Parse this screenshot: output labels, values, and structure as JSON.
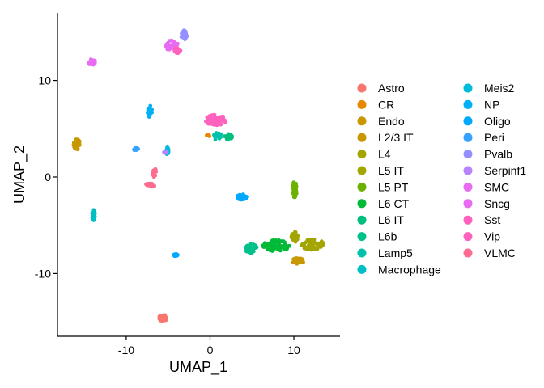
{
  "chart_data": {
    "type": "scatter",
    "title": "",
    "xlabel": "UMAP_1",
    "ylabel": "UMAP_2",
    "xlim": [
      -18.2,
      15.5
    ],
    "ylim": [
      -16.5,
      17
    ],
    "xticks": [
      -10,
      0,
      10
    ],
    "yticks": [
      -10,
      0,
      10
    ],
    "xtick_labels": [
      "-10",
      "0",
      "10"
    ],
    "ytick_labels": [
      "-10",
      "0",
      "10"
    ],
    "grid": false,
    "legend": "right",
    "series": [
      {
        "name": "Astro",
        "color": "#F8766D",
        "clusters": [
          [
            -5.6,
            -14.6,
            0.5,
            0.35,
            40
          ]
        ]
      },
      {
        "name": "CR",
        "color": "#E58700",
        "clusters": [
          [
            -0.2,
            4.3,
            0.2,
            0.15,
            3
          ]
        ]
      },
      {
        "name": "Endo",
        "color": "#C99800",
        "clusters": [
          [
            -15.9,
            3.4,
            0.4,
            0.55,
            40
          ]
        ]
      },
      {
        "name": "L2/3 IT",
        "color": "#C99800",
        "clusters": [
          [
            10.5,
            -8.7,
            0.7,
            0.3,
            30
          ]
        ]
      },
      {
        "name": "L4",
        "color": "#A3A500",
        "clusters": [
          [
            12.2,
            -7,
            1.4,
            0.55,
            60
          ]
        ]
      },
      {
        "name": "L5 IT",
        "color": "#A3A500",
        "clusters": [
          [
            10.1,
            -6.2,
            0.4,
            0.6,
            30
          ]
        ]
      },
      {
        "name": "L5 PT",
        "color": "#6BB100",
        "clusters": [
          [
            10.1,
            -1.3,
            0.25,
            0.85,
            55
          ]
        ]
      },
      {
        "name": "L6 CT",
        "color": "#00BA38",
        "clusters": [
          [
            7.9,
            -7.1,
            1.6,
            0.6,
            75
          ]
        ]
      },
      {
        "name": "L6 IT",
        "color": "#00BF7D",
        "clusters": [
          [
            2.2,
            4.3,
            0.5,
            0.5,
            20
          ]
        ]
      },
      {
        "name": "L6b",
        "color": "#00C08B",
        "clusters": [
          [
            4.9,
            -7.4,
            0.7,
            0.55,
            45
          ]
        ]
      },
      {
        "name": "Lamp5",
        "color": "#00C1A9",
        "clusters": [
          [
            0.9,
            4.2,
            0.6,
            0.4,
            20
          ]
        ]
      },
      {
        "name": "Macrophage",
        "color": "#00BFC4",
        "clusters": [
          [
            -13.9,
            -3.9,
            0.2,
            0.6,
            20
          ]
        ]
      },
      {
        "name": "Meis2",
        "color": "#00BBDB",
        "clusters": [
          [
            -5.1,
            2.7,
            0.15,
            0.5,
            14
          ]
        ]
      },
      {
        "name": "NP",
        "color": "#00B0F6",
        "clusters": [
          [
            -7.2,
            6.8,
            0.3,
            0.6,
            20
          ]
        ]
      },
      {
        "name": "Oligo",
        "color": "#00A9FF",
        "clusters": [
          [
            3.8,
            -2.1,
            0.6,
            0.3,
            40
          ],
          [
            -4.1,
            -8.1,
            0.25,
            0.12,
            12
          ]
        ]
      },
      {
        "name": "Peri",
        "color": "#35A2FF",
        "clusters": [
          [
            -8.8,
            2.9,
            0.3,
            0.2,
            10
          ]
        ]
      },
      {
        "name": "Pvalb",
        "color": "#9590FF",
        "clusters": [
          [
            -3.1,
            14.7,
            0.35,
            0.5,
            40
          ]
        ]
      },
      {
        "name": "Serpinf1",
        "color": "#B983FF",
        "clusters": [
          [
            -5.3,
            2.5,
            0.25,
            0.15,
            5
          ]
        ]
      },
      {
        "name": "SMC",
        "color": "#E76BF3",
        "clusters": [
          [
            -14.1,
            11.9,
            0.45,
            0.3,
            25
          ]
        ]
      },
      {
        "name": "Sncg",
        "color": "#E76BF3",
        "clusters": [
          [
            -4.6,
            13.6,
            0.8,
            0.6,
            40
          ]
        ]
      },
      {
        "name": "Sst",
        "color": "#FF62BC",
        "clusters": [
          [
            0.7,
            5.9,
            1.3,
            0.55,
            80
          ]
        ]
      },
      {
        "name": "Vip",
        "color": "#FF62BC",
        "clusters": [
          [
            -3.9,
            13.1,
            0.4,
            0.3,
            25
          ]
        ]
      },
      {
        "name": "VLMC",
        "color": "#FF6C91",
        "clusters": [
          [
            -7.2,
            -0.9,
            0.6,
            0.25,
            20
          ],
          [
            -6.7,
            0.4,
            0.3,
            0.6,
            15
          ]
        ]
      }
    ]
  }
}
